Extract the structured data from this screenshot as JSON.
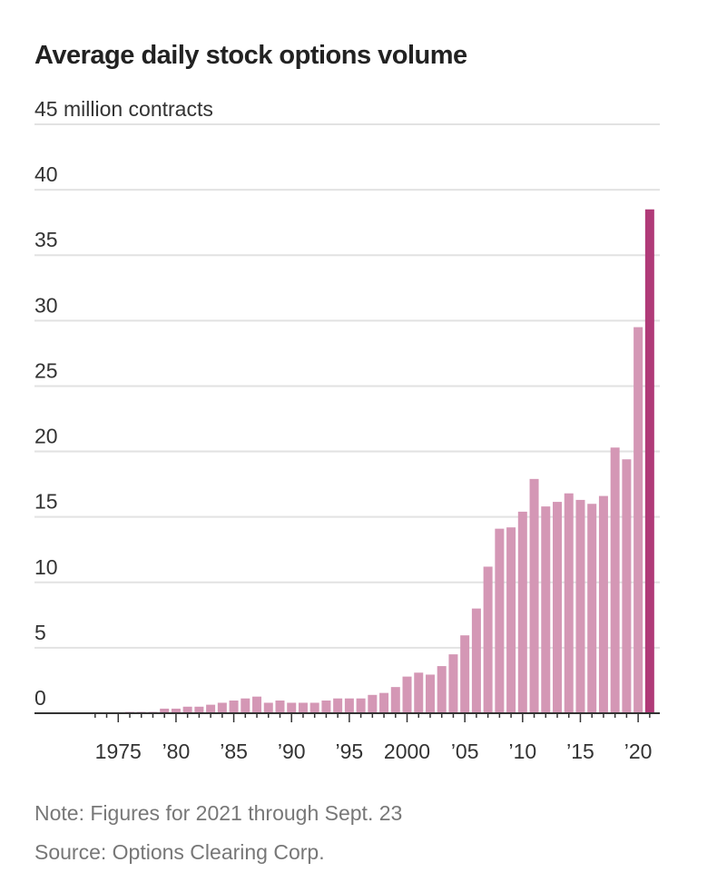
{
  "chart_data": {
    "type": "bar",
    "title": "Average daily stock options volume",
    "ylabel": "million contracts",
    "ylim": [
      0,
      45
    ],
    "yticks": [
      0,
      5,
      10,
      15,
      20,
      25,
      30,
      35,
      40,
      45
    ],
    "ytick_labels": [
      "0",
      "5",
      "10",
      "15",
      "20",
      "25",
      "30",
      "35",
      "40",
      "45 million contracts"
    ],
    "xlim": [
      1973,
      2021
    ],
    "xticks": [
      1975,
      1980,
      1985,
      1990,
      1995,
      2000,
      2005,
      2010,
      2015,
      2020
    ],
    "xtick_labels": [
      "1975",
      "’80",
      "’85",
      "’90",
      "’95",
      "2000",
      "’05",
      "’10",
      "’15",
      "’20"
    ],
    "grid": true,
    "colors": {
      "bar": "#d497b5",
      "highlight": "#b03a78",
      "grid": "#e2e2e2",
      "axis": "#333333"
    },
    "highlight_year": 2021,
    "categories": [
      1976,
      1977,
      1978,
      1979,
      1980,
      1981,
      1982,
      1983,
      1984,
      1985,
      1986,
      1987,
      1988,
      1989,
      1990,
      1991,
      1992,
      1993,
      1994,
      1995,
      1996,
      1997,
      1998,
      1999,
      2000,
      2001,
      2002,
      2003,
      2004,
      2005,
      2006,
      2007,
      2008,
      2009,
      2010,
      2011,
      2012,
      2013,
      2014,
      2015,
      2016,
      2017,
      2018,
      2019,
      2020,
      2021
    ],
    "values": [
      0.1,
      0.1,
      0.1,
      0.35,
      0.35,
      0.5,
      0.5,
      0.65,
      0.8,
      0.97,
      1.13,
      1.27,
      0.8,
      0.97,
      0.8,
      0.8,
      0.8,
      0.97,
      1.13,
      1.13,
      1.13,
      1.4,
      1.55,
      2.0,
      2.8,
      3.1,
      2.95,
      3.6,
      4.5,
      5.95,
      8.0,
      11.2,
      14.1,
      14.2,
      15.4,
      17.9,
      15.8,
      16.15,
      16.8,
      16.3,
      16.0,
      16.6,
      20.3,
      19.4,
      29.5,
      38.5
    ]
  },
  "notes": {
    "note": "Note: Figures for 2021 through Sept. 23",
    "source": "Source: Options Clearing Corp."
  }
}
